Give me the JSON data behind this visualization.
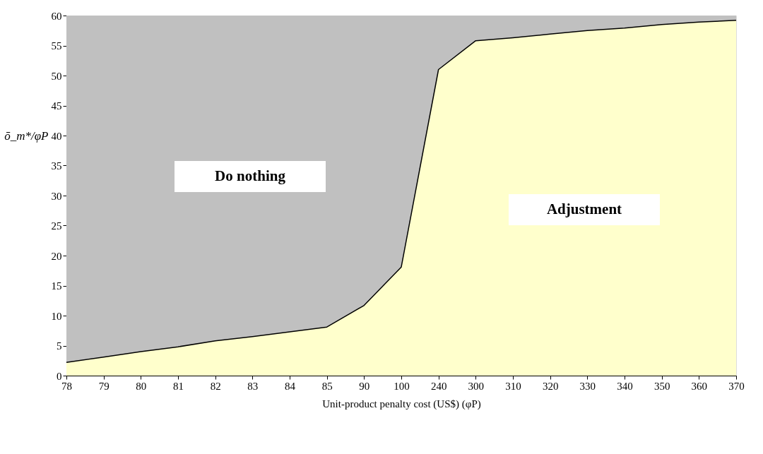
{
  "chart_data": {
    "type": "area",
    "xlabel": "Unit-product penalty cost (US$)  (φP)",
    "ylabel": "ō_m*/φP",
    "categories": [
      "78",
      "79",
      "80",
      "81",
      "82",
      "83",
      "84",
      "85",
      "90",
      "100",
      "240",
      "300",
      "310",
      "320",
      "330",
      "340",
      "350",
      "360",
      "370"
    ],
    "series": [
      {
        "color": "#ffffcc",
        "values": [
          2.2,
          3.1,
          4.0,
          4.8,
          5.8,
          6.5,
          7.3,
          8.1,
          11.7,
          18.1,
          51.0,
          55.8,
          56.3,
          56.9,
          57.5,
          57.9,
          58.5,
          58.9,
          59.2
        ]
      }
    ],
    "bands": [
      {
        "axis": "y",
        "from": 0,
        "to": 60,
        "color": "#c0c0c0"
      }
    ],
    "annotations": [
      "Do nothing",
      "Adjustment"
    ],
    "ylim": [
      0,
      60
    ],
    "yticks": [
      0,
      5,
      10,
      15,
      20,
      25,
      30,
      35,
      40,
      45,
      50,
      55,
      60
    ]
  }
}
